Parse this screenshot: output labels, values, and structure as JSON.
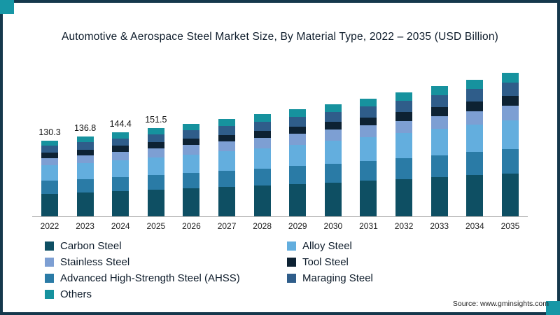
{
  "source": {
    "text": "Source: www.gminsights.com"
  },
  "frame": {
    "border_color": "#15384c",
    "corner_accent_color": "#1797a6"
  },
  "chart_data": {
    "type": "bar",
    "subtype": "stacked-bar",
    "title": "Automotive & Aerospace Steel Market Size, By Material Type, 2022 – 2035 (USD Billion)",
    "xlabel": "",
    "ylabel": "",
    "grid": false,
    "legend_position": "bottom",
    "x": [
      "2022",
      "2023",
      "2024",
      "2025",
      "2026",
      "2027",
      "2028",
      "2029",
      "2030",
      "2031",
      "2032",
      "2033",
      "2034",
      "2035"
    ],
    "totals": [
      130.3,
      136.8,
      144.4,
      151.5,
      159.1,
      167.1,
      175.5,
      184.3,
      193.5,
      203.2,
      213.4,
      224.1,
      235.3,
      247.1
    ],
    "value_labels": [
      "130.3",
      "136.8",
      "144.4",
      "151.5",
      "",
      "",
      "",
      "",
      "",
      "",
      "",
      "",
      "",
      ""
    ],
    "series": [
      {
        "name": "Carbon Steel",
        "color": "#0e4f63",
        "values": [
          39.1,
          41.0,
          43.3,
          45.5,
          47.7,
          50.1,
          52.7,
          55.3,
          58.1,
          61.0,
          64.0,
          67.2,
          70.6,
          74.1
        ]
      },
      {
        "name": "Advanced High-Strength Steel (AHSS)",
        "color": "#2a7ba6",
        "values": [
          22.2,
          23.3,
          24.5,
          25.8,
          27.0,
          28.4,
          29.8,
          31.3,
          32.9,
          34.5,
          36.3,
          38.1,
          40.0,
          42.0
        ]
      },
      {
        "name": "Alloy Steel",
        "color": "#63aede",
        "values": [
          26.1,
          27.4,
          28.9,
          30.3,
          31.8,
          33.4,
          35.1,
          36.9,
          38.7,
          40.6,
          42.7,
          44.8,
          47.1,
          49.4
        ]
      },
      {
        "name": "Stainless Steel",
        "color": "#7d9fd3",
        "values": [
          13.0,
          13.7,
          14.4,
          15.2,
          15.9,
          16.7,
          17.6,
          18.4,
          19.4,
          20.3,
          21.3,
          22.4,
          23.5,
          24.7
        ]
      },
      {
        "name": "Tool Steel",
        "color": "#0d2233",
        "values": [
          9.1,
          9.6,
          10.1,
          10.6,
          11.1,
          11.7,
          12.3,
          12.9,
          13.5,
          14.2,
          14.9,
          15.7,
          16.5,
          17.3
        ]
      },
      {
        "name": "Maraging Steel",
        "color": "#2f5d8a",
        "values": [
          11.7,
          12.3,
          13.0,
          13.6,
          14.3,
          15.0,
          15.8,
          16.6,
          17.4,
          18.3,
          19.2,
          20.2,
          21.2,
          22.2
        ]
      },
      {
        "name": "Others",
        "color": "#16929e",
        "values": [
          9.1,
          9.6,
          10.1,
          10.6,
          11.1,
          11.7,
          12.3,
          12.9,
          13.5,
          14.2,
          14.9,
          15.7,
          16.5,
          17.3
        ]
      }
    ],
    "legend": [
      {
        "label": "Carbon Steel",
        "color": "#0e4f63"
      },
      {
        "label": "Alloy Steel",
        "color": "#63aede"
      },
      {
        "label": "Stainless Steel",
        "color": "#7d9fd3"
      },
      {
        "label": "Tool Steel",
        "color": "#0d2233"
      },
      {
        "label": "Advanced High-Strength Steel (AHSS)",
        "color": "#2a7ba6"
      },
      {
        "label": "Maraging Steel",
        "color": "#2f5d8a"
      },
      {
        "label": "Others",
        "color": "#16929e"
      }
    ]
  }
}
